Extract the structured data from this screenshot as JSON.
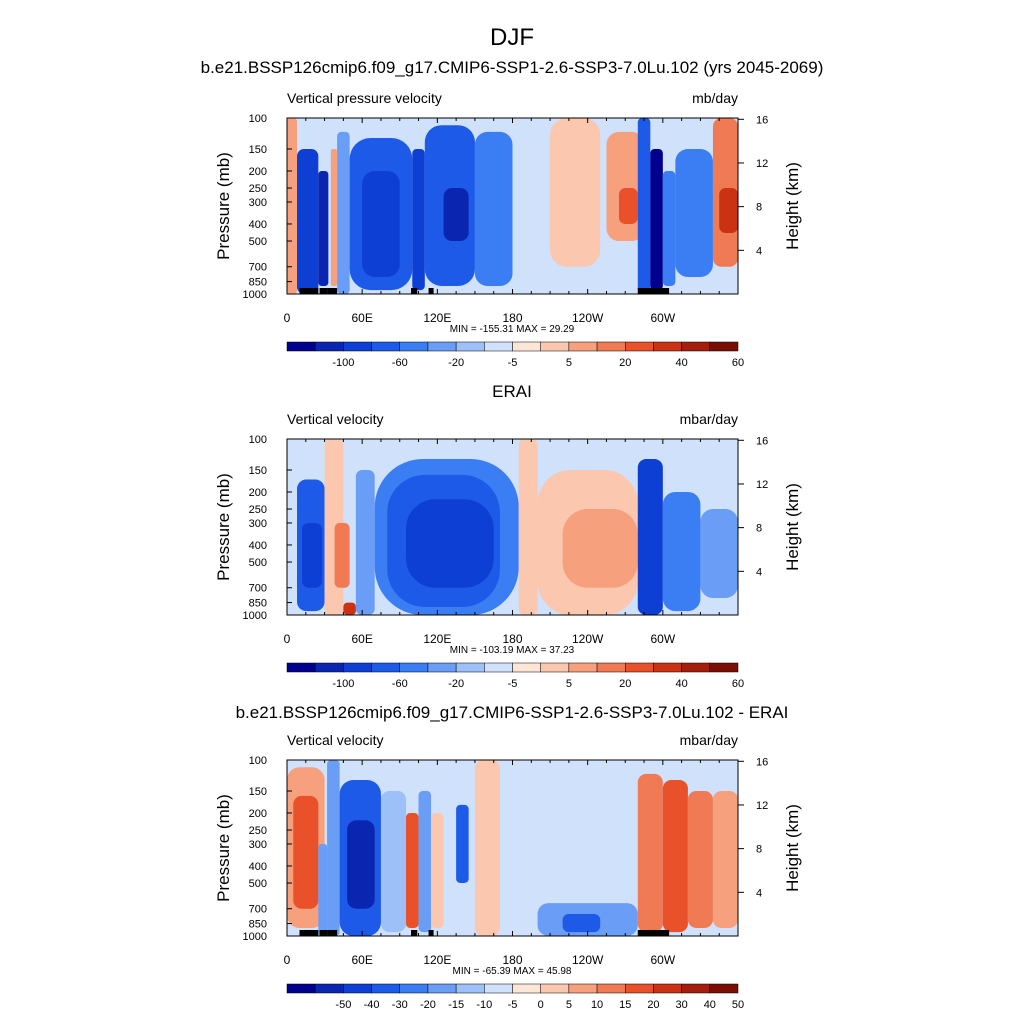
{
  "figure": {
    "title": "DJF",
    "colors": {
      "land": "#000000",
      "neg": [
        "#00008e",
        "#0a26b0",
        "#0d3fd4",
        "#1e5ae8",
        "#3b7df2",
        "#6a9df5",
        "#9cc0f7",
        "#cfe1fb"
      ],
      "pos": [
        "#fde6d6",
        "#fbc7ae",
        "#f6a07e",
        "#f07a54",
        "#e85129",
        "#c93213",
        "#a31e0d",
        "#7a0e05"
      ]
    }
  },
  "chart_data": [
    {
      "type": "heatmap",
      "title": "b.e21.BSSP126cmip6.f09_g17.CMIP6-SSP1-2.6-SSP3-7.0Lu.102 (yrs 2045-2069)",
      "left_label": "Vertical pressure velocity",
      "units": "mb/day",
      "ylabel": "Pressure (mb)",
      "ylabel_right": "Height (km)",
      "xticks": [
        "0",
        "60E",
        "120E",
        "180",
        "120W",
        "60W"
      ],
      "xtick_lon": [
        0,
        60,
        120,
        180,
        240,
        300
      ],
      "yticks": [
        "100",
        "150",
        "200",
        "250",
        "300",
        "400",
        "500",
        "700",
        "850",
        "1000"
      ],
      "ytick_p": [
        100,
        150,
        200,
        250,
        300,
        400,
        500,
        700,
        850,
        1000
      ],
      "rticks": [
        "16",
        "12",
        "8",
        "4"
      ],
      "rtick_km": [
        16,
        12,
        8,
        4
      ],
      "stats": "MIN = -155.31  MAX =  29.29",
      "levels": [
        -120,
        -100,
        -80,
        -60,
        -40,
        -20,
        -10,
        -5,
        0,
        5,
        10,
        20,
        30,
        40,
        50,
        60,
        70
      ],
      "colorbar_labels": [
        {
          "text": "-100",
          "index": 1
        },
        {
          "text": "-60",
          "index": 3
        },
        {
          "text": "-20",
          "index": 5
        },
        {
          "text": "-5",
          "index": 7
        },
        {
          "text": "5",
          "index": 9
        },
        {
          "text": "20",
          "index": 11
        },
        {
          "text": "40",
          "index": 13
        },
        {
          "text": "60",
          "index": 15
        }
      ],
      "show_land": true,
      "cells": [
        {
          "lon": [
            0,
            8
          ],
          "p": [
            100,
            1000
          ],
          "v": 12
        },
        {
          "lon": [
            8,
            25
          ],
          "p": [
            150,
            1000
          ],
          "v": -70
        },
        {
          "lon": [
            25,
            33
          ],
          "p": [
            200,
            900
          ],
          "v": -90
        },
        {
          "lon": [
            35,
            40
          ],
          "p": [
            150,
            900
          ],
          "v": 10
        },
        {
          "lon": [
            40,
            50
          ],
          "p": [
            120,
            1000
          ],
          "v": -15
        },
        {
          "lon": [
            50,
            100
          ],
          "p": [
            130,
            950
          ],
          "v": -55
        },
        {
          "lon": [
            60,
            90
          ],
          "p": [
            200,
            800
          ],
          "v": -80
        },
        {
          "lon": [
            100,
            110
          ],
          "p": [
            150,
            950
          ],
          "v": -70
        },
        {
          "lon": [
            110,
            150
          ],
          "p": [
            110,
            900
          ],
          "v": -50
        },
        {
          "lon": [
            125,
            145
          ],
          "p": [
            250,
            500
          ],
          "v": -100
        },
        {
          "lon": [
            150,
            180
          ],
          "p": [
            120,
            900
          ],
          "v": -25
        },
        {
          "lon": [
            180,
            210
          ],
          "p": [
            100,
            900
          ],
          "v": -5
        },
        {
          "lon": [
            210,
            250
          ],
          "p": [
            100,
            700
          ],
          "v": 8
        },
        {
          "lon": [
            255,
            285
          ],
          "p": [
            120,
            500
          ],
          "v": 18
        },
        {
          "lon": [
            265,
            280
          ],
          "p": [
            250,
            400
          ],
          "v": 35
        },
        {
          "lon": [
            280,
            290
          ],
          "p": [
            100,
            1000
          ],
          "v": -60
        },
        {
          "lon": [
            290,
            300
          ],
          "p": [
            150,
            950
          ],
          "v": -110
        },
        {
          "lon": [
            300,
            310
          ],
          "p": [
            200,
            900
          ],
          "v": -30
        },
        {
          "lon": [
            310,
            340
          ],
          "p": [
            150,
            800
          ],
          "v": -40
        },
        {
          "lon": [
            340,
            360
          ],
          "p": [
            100,
            700
          ],
          "v": 22
        },
        {
          "lon": [
            345,
            360
          ],
          "p": [
            250,
            450
          ],
          "v": 40
        }
      ]
    },
    {
      "type": "heatmap",
      "title": "ERAI",
      "left_label": "Vertical velocity",
      "units": "mbar/day",
      "ylabel": "Pressure (mb)",
      "ylabel_right": "Height (km)",
      "xticks": [
        "0",
        "60E",
        "120E",
        "180",
        "120W",
        "60W"
      ],
      "xtick_lon": [
        0,
        60,
        120,
        180,
        240,
        300
      ],
      "yticks": [
        "100",
        "150",
        "200",
        "250",
        "300",
        "400",
        "500",
        "700",
        "850",
        "1000"
      ],
      "ytick_p": [
        100,
        150,
        200,
        250,
        300,
        400,
        500,
        700,
        850,
        1000
      ],
      "rticks": [
        "16",
        "12",
        "8",
        "4"
      ],
      "rtick_km": [
        16,
        12,
        8,
        4
      ],
      "stats": "MIN = -103.19  MAX =  37.23",
      "levels": [
        -120,
        -100,
        -80,
        -60,
        -40,
        -20,
        -10,
        -5,
        0,
        5,
        10,
        20,
        30,
        40,
        50,
        60,
        70
      ],
      "colorbar_labels": [
        {
          "text": "-100",
          "index": 1
        },
        {
          "text": "-60",
          "index": 3
        },
        {
          "text": "-20",
          "index": 5
        },
        {
          "text": "-5",
          "index": 7
        },
        {
          "text": "5",
          "index": 9
        },
        {
          "text": "20",
          "index": 11
        },
        {
          "text": "40",
          "index": 13
        },
        {
          "text": "60",
          "index": 15
        }
      ],
      "show_land": false,
      "cells": [
        {
          "lon": [
            0,
            8
          ],
          "p": [
            100,
            1000
          ],
          "v": -5
        },
        {
          "lon": [
            8,
            30
          ],
          "p": [
            170,
            950
          ],
          "v": -45
        },
        {
          "lon": [
            12,
            28
          ],
          "p": [
            300,
            700
          ],
          "v": -70
        },
        {
          "lon": [
            30,
            45
          ],
          "p": [
            100,
            1000
          ],
          "v": 6
        },
        {
          "lon": [
            38,
            50
          ],
          "p": [
            300,
            700
          ],
          "v": 25
        },
        {
          "lon": [
            45,
            55
          ],
          "p": [
            850,
            1000
          ],
          "v": 40
        },
        {
          "lon": [
            55,
            70
          ],
          "p": [
            150,
            1000
          ],
          "v": -15
        },
        {
          "lon": [
            70,
            185
          ],
          "p": [
            130,
            1000
          ],
          "v": -30
        },
        {
          "lon": [
            80,
            170
          ],
          "p": [
            160,
            900
          ],
          "v": -55
        },
        {
          "lon": [
            95,
            165
          ],
          "p": [
            220,
            700
          ],
          "v": -75
        },
        {
          "lon": [
            185,
            200
          ],
          "p": [
            100,
            1000
          ],
          "v": 6
        },
        {
          "lon": [
            200,
            280
          ],
          "p": [
            150,
            1000
          ],
          "v": 8
        },
        {
          "lon": [
            220,
            280
          ],
          "p": [
            250,
            700
          ],
          "v": 15
        },
        {
          "lon": [
            280,
            300
          ],
          "p": [
            130,
            1000
          ],
          "v": -70
        },
        {
          "lon": [
            300,
            330
          ],
          "p": [
            200,
            950
          ],
          "v": -40
        },
        {
          "lon": [
            330,
            360
          ],
          "p": [
            250,
            800
          ],
          "v": -15
        }
      ]
    },
    {
      "type": "heatmap",
      "title": "b.e21.BSSP126cmip6.f09_g17.CMIP6-SSP1-2.6-SSP3-7.0Lu.102 - ERAI",
      "left_label": "Vertical velocity",
      "units": "mbar/day",
      "ylabel": "Pressure (mb)",
      "ylabel_right": "Height (km)",
      "xticks": [
        "0",
        "60E",
        "120E",
        "180",
        "120W",
        "60W"
      ],
      "xtick_lon": [
        0,
        60,
        120,
        180,
        240,
        300
      ],
      "yticks": [
        "100",
        "150",
        "200",
        "250",
        "300",
        "400",
        "500",
        "700",
        "850",
        "1000"
      ],
      "ytick_p": [
        100,
        150,
        200,
        250,
        300,
        400,
        500,
        700,
        850,
        1000
      ],
      "rticks": [
        "16",
        "12",
        "8",
        "4"
      ],
      "rtick_km": [
        16,
        12,
        8,
        4
      ],
      "stats": "MIN = -65.39  MAX =  45.98",
      "levels": [
        -60,
        -50,
        -40,
        -30,
        -20,
        -15,
        -10,
        -5,
        0,
        5,
        10,
        15,
        20,
        30,
        40,
        50,
        60
      ],
      "colorbar_labels": [
        {
          "text": "-50",
          "index": 1
        },
        {
          "text": "-40",
          "index": 2
        },
        {
          "text": "-30",
          "index": 3
        },
        {
          "text": "-20",
          "index": 4
        },
        {
          "text": "-15",
          "index": 5
        },
        {
          "text": "-10",
          "index": 6
        },
        {
          "text": "-5",
          "index": 7
        },
        {
          "text": "0",
          "index": 8
        },
        {
          "text": "5",
          "index": 9
        },
        {
          "text": "10",
          "index": 10
        },
        {
          "text": "15",
          "index": 11
        },
        {
          "text": "20",
          "index": 12
        },
        {
          "text": "30",
          "index": 13
        },
        {
          "text": "40",
          "index": 14
        },
        {
          "text": "50",
          "index": 15
        }
      ],
      "show_land": true,
      "cells": [
        {
          "lon": [
            0,
            30
          ],
          "p": [
            110,
            900
          ],
          "v": 12
        },
        {
          "lon": [
            5,
            25
          ],
          "p": [
            160,
            700
          ],
          "v": 25
        },
        {
          "lon": [
            25,
            32
          ],
          "p": [
            300,
            1000
          ],
          "v": -12
        },
        {
          "lon": [
            32,
            42
          ],
          "p": [
            100,
            1000
          ],
          "v": -15
        },
        {
          "lon": [
            42,
            75
          ],
          "p": [
            130,
            1000
          ],
          "v": -30
        },
        {
          "lon": [
            48,
            70
          ],
          "p": [
            220,
            700
          ],
          "v": -45
        },
        {
          "lon": [
            75,
            95
          ],
          "p": [
            150,
            950
          ],
          "v": -10
        },
        {
          "lon": [
            95,
            105
          ],
          "p": [
            200,
            900
          ],
          "v": 22
        },
        {
          "lon": [
            105,
            115
          ],
          "p": [
            150,
            950
          ],
          "v": -12
        },
        {
          "lon": [
            115,
            125
          ],
          "p": [
            200,
            900
          ],
          "v": 8
        },
        {
          "lon": [
            135,
            145
          ],
          "p": [
            180,
            500
          ],
          "v": -25
        },
        {
          "lon": [
            150,
            170
          ],
          "p": [
            100,
            1000
          ],
          "v": 6
        },
        {
          "lon": [
            200,
            280
          ],
          "p": [
            650,
            1000
          ],
          "v": -12
        },
        {
          "lon": [
            220,
            250
          ],
          "p": [
            750,
            950
          ],
          "v": -22
        },
        {
          "lon": [
            280,
            300
          ],
          "p": [
            120,
            950
          ],
          "v": 18
        },
        {
          "lon": [
            300,
            320
          ],
          "p": [
            130,
            950
          ],
          "v": 28
        },
        {
          "lon": [
            320,
            340
          ],
          "p": [
            150,
            900
          ],
          "v": 15
        },
        {
          "lon": [
            340,
            360
          ],
          "p": [
            150,
            900
          ],
          "v": 10
        }
      ]
    }
  ]
}
